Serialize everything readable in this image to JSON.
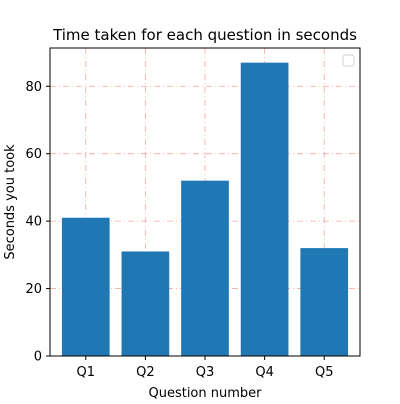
{
  "chart_data": {
    "type": "bar",
    "title": "Time taken for each question in seconds",
    "xlabel": "Question number",
    "ylabel": "Seconds you took",
    "categories": [
      "Q1",
      "Q2",
      "Q3",
      "Q4",
      "Q5"
    ],
    "values": [
      41,
      31,
      52,
      87,
      32
    ],
    "ylim": [
      0,
      91.35
    ],
    "yticks": [
      0,
      20,
      40,
      60,
      80
    ],
    "grid": true,
    "legend": "top-right",
    "legend_entries": [],
    "colors": {
      "bar": "#1f77b4",
      "grid": "#f4a9a0",
      "axis": "#000000"
    }
  }
}
